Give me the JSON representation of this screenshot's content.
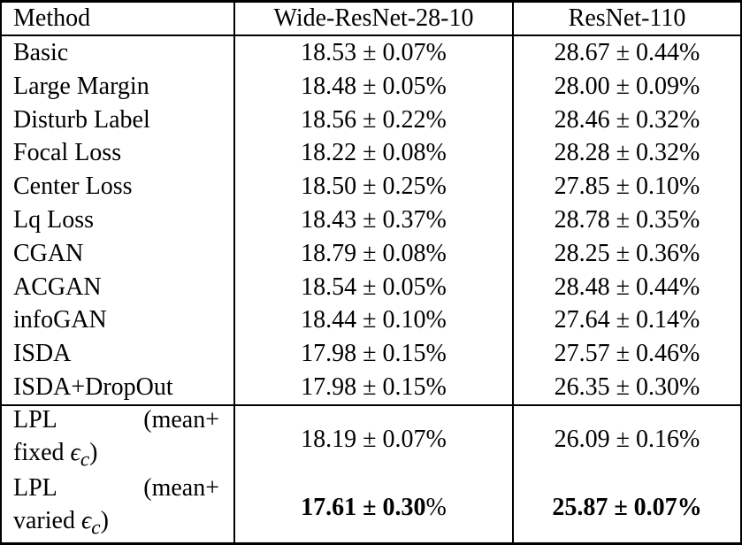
{
  "table": {
    "percent": "%",
    "columns": [
      "Method",
      "Wide-ResNet-28-10",
      "ResNet-110"
    ],
    "rows": [
      {
        "method": "Basic",
        "wrn": "18.53 ± 0.07",
        "rn": "28.67 ± 0.44"
      },
      {
        "method": "Large Margin",
        "wrn": "18.48 ± 0.05",
        "rn": "28.00 ± 0.09"
      },
      {
        "method": "Disturb Label",
        "wrn": "18.56 ± 0.22",
        "rn": "28.46 ± 0.32"
      },
      {
        "method": "Focal Loss",
        "wrn": "18.22 ± 0.08",
        "rn": "28.28 ± 0.32"
      },
      {
        "method": "Center Loss",
        "wrn": "18.50 ± 0.25",
        "rn": "27.85 ± 0.10"
      },
      {
        "method": "Lq Loss",
        "wrn": "18.43 ± 0.37",
        "rn": "28.78 ± 0.35"
      },
      {
        "method": "CGAN",
        "wrn": "18.79 ± 0.08",
        "rn": "28.25 ± 0.36"
      },
      {
        "method": "ACGAN",
        "wrn": "18.54 ± 0.05",
        "rn": "28.48 ± 0.44"
      },
      {
        "method": "infoGAN",
        "wrn": "18.44 ± 0.10",
        "rn": "27.64 ± 0.14"
      },
      {
        "method": "ISDA",
        "wrn": "17.98 ± 0.15",
        "rn": "27.57 ± 0.46"
      },
      {
        "method": "ISDA+DropOut",
        "wrn": "17.98 ± 0.15",
        "rn": "26.35 ± 0.30"
      }
    ],
    "lpl_rows": [
      {
        "line1_left": "LPL",
        "line1_right": "(mean+",
        "line2_prefix": "fixed",
        "epsilon": "ϵ",
        "epsilon_sub": "c",
        "close": ")",
        "wrn": "18.19 ± 0.07",
        "rn": "26.09 ± 0.16",
        "bold": false,
        "wrn_pct_bold": false,
        "rn_pct_bold": false
      },
      {
        "line1_left": "LPL",
        "line1_right": "(mean+",
        "line2_prefix": "varied",
        "epsilon": "ϵ",
        "epsilon_sub": "c",
        "close": ")",
        "wrn": "17.61 ± 0.30",
        "rn": "25.87 ± 0.07",
        "bold": true,
        "wrn_pct_bold": false,
        "rn_pct_bold": true
      }
    ]
  }
}
